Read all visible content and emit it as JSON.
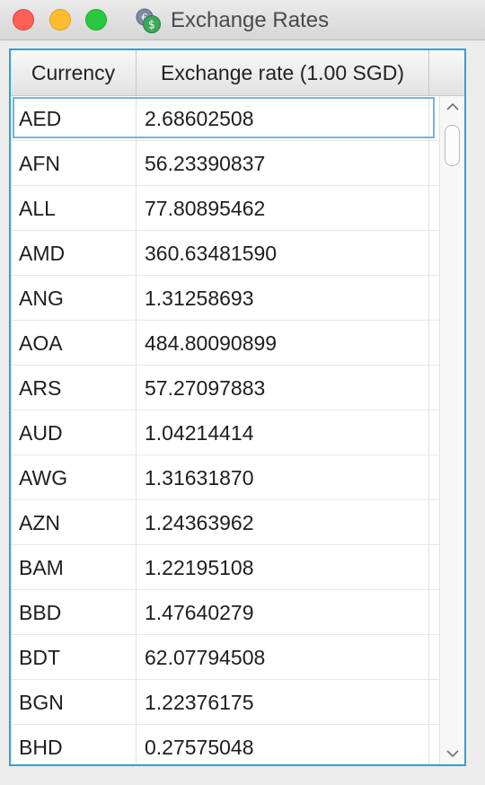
{
  "window": {
    "title": "Exchange Rates"
  },
  "table": {
    "columns": [
      {
        "label": "Currency"
      },
      {
        "label": "Exchange rate (1.00 SGD)"
      }
    ],
    "rows": [
      {
        "currency": "AED",
        "rate": "2.68602508"
      },
      {
        "currency": "AFN",
        "rate": "56.23390837"
      },
      {
        "currency": "ALL",
        "rate": "77.80895462"
      },
      {
        "currency": "AMD",
        "rate": "360.63481590"
      },
      {
        "currency": "ANG",
        "rate": "1.31258693"
      },
      {
        "currency": "AOA",
        "rate": "484.80090899"
      },
      {
        "currency": "ARS",
        "rate": "57.27097883"
      },
      {
        "currency": "AUD",
        "rate": "1.04214414"
      },
      {
        "currency": "AWG",
        "rate": "1.31631870"
      },
      {
        "currency": "AZN",
        "rate": "1.24363962"
      },
      {
        "currency": "BAM",
        "rate": "1.22195108"
      },
      {
        "currency": "BBD",
        "rate": "1.47640279"
      },
      {
        "currency": "BDT",
        "rate": "62.07794508"
      },
      {
        "currency": "BGN",
        "rate": "1.22376175"
      },
      {
        "currency": "BHD",
        "rate": "0.27575048"
      }
    ],
    "selected_row": 0
  },
  "colors": {
    "focus_border": "#2aa4d9",
    "close": "#fe5f57",
    "minimize": "#febc2e",
    "maximize": "#28c840"
  },
  "icons": {
    "app": "currency-coins-icon",
    "scroll_up": "chevron-up-icon",
    "scroll_down": "chevron-down-icon"
  }
}
